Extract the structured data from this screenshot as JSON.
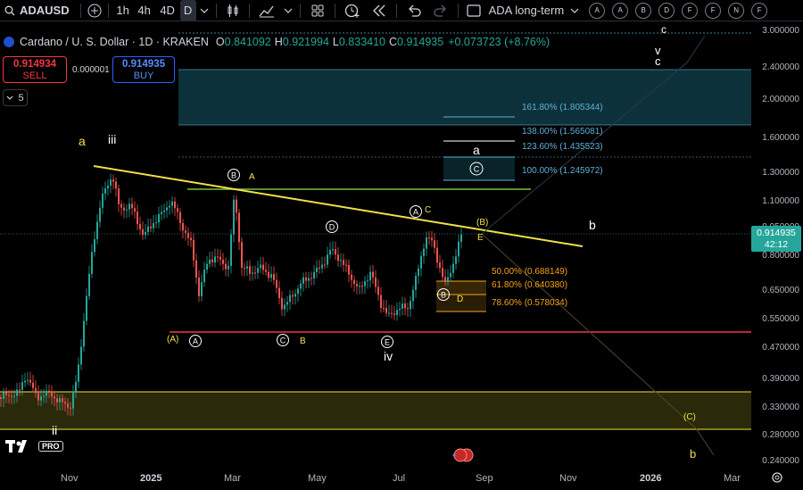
{
  "toolbar": {
    "symbol": "ADAUSD",
    "intervals": [
      "1h",
      "4h",
      "4D",
      "D"
    ],
    "active_interval": "D",
    "layout_name": "ADA long-term",
    "letter_buttons": [
      "A",
      "A",
      "B",
      "D",
      "F",
      "F",
      "N",
      "F"
    ]
  },
  "legend": {
    "title": "Cardano / U. S. Dollar · 1D · KRAKEN",
    "open_label": "O",
    "open": "0.841092",
    "high_label": "H",
    "high": "0.921994",
    "low_label": "L",
    "low": "0.833410",
    "close_label": "C",
    "close": "0.914935",
    "change": "+0.073723 (+8.76%)"
  },
  "trade": {
    "sell_price": "0.914934",
    "sell_label": "SELL",
    "spread": "0.000001",
    "buy_price": "0.914935",
    "buy_label": "BUY",
    "collapse_count": "5"
  },
  "price_axis": {
    "ticks": [
      "3.000000",
      "2.400000",
      "2.000000",
      "1.600000",
      "1.300000",
      "1.100000",
      "0.950000",
      "0.800000",
      "0.650000",
      "0.550000",
      "0.470000",
      "0.390000",
      "0.330000",
      "0.280000",
      "0.240000"
    ],
    "current_price": "0.914935",
    "countdown": "42:12"
  },
  "time_axis": {
    "ticks": [
      "Nov",
      "2025",
      "Mar",
      "May",
      "Jul",
      "Sep",
      "Nov",
      "2026",
      "Mar"
    ]
  },
  "fib_top": [
    "161.80% (1.805344)",
    "138.00% (1.565081)",
    "123.60% (1.435523)",
    "100.00% (1.245972)"
  ],
  "fib_bottom": [
    "50.00% (0.688149)",
    "61.80% (0.640380)",
    "78.60% (0.578034)"
  ],
  "wave_labels": {
    "a_top": "a",
    "iii": "iii",
    "ii": "ii",
    "iv": "iv",
    "v": "v",
    "c_top": "c",
    "c_cut": "c",
    "B_circ": "B",
    "A_small": "A",
    "D_circ": "D",
    "A_circ2": "A",
    "C_small": "C",
    "B_paren": "(B)",
    "E_small": "E",
    "b_right": "b",
    "a_fib": "a",
    "C_circ_fib": "C",
    "B_circ2": "B",
    "D_small": "D",
    "A_paren": "(A)",
    "A_circ": "A",
    "C_circ": "C",
    "B_small": "B",
    "E_circ": "E",
    "C_paren": "(C)",
    "b_low": "b"
  },
  "colors": {
    "up": "#26a69a",
    "down": "#ef5350",
    "trendline": "#f0e04a",
    "support": "#f23645",
    "zone": "#f0e04a",
    "resistance": "#7bc043",
    "fib": "#5fb0d6",
    "fib_orange": "#f7a21b"
  }
}
